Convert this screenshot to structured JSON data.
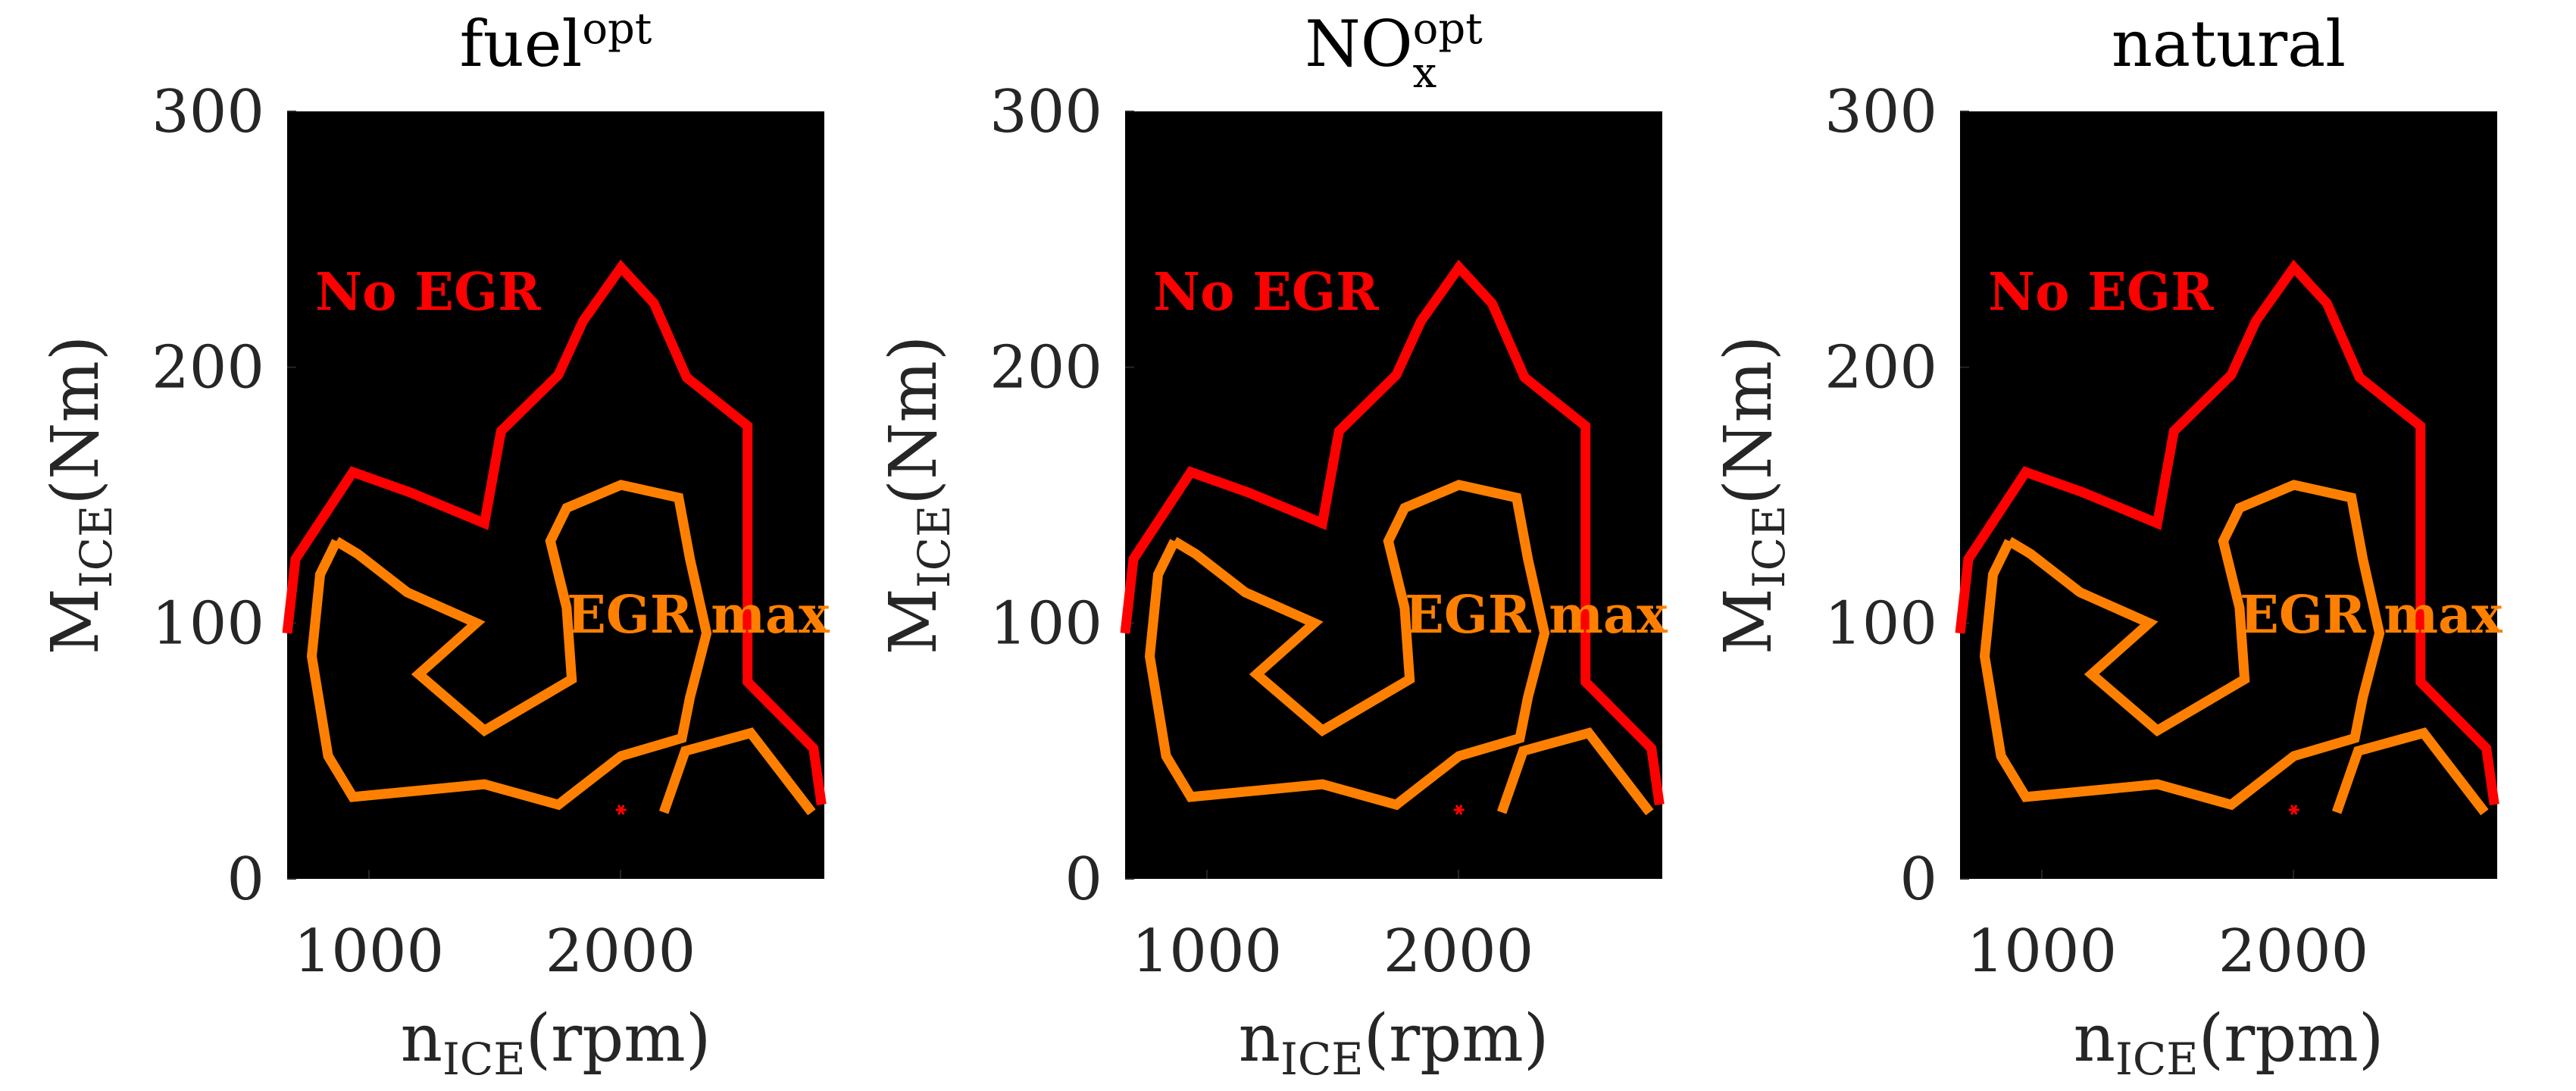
{
  "chart_data": [
    {
      "type": "contour",
      "title": "fuel",
      "title_sup": "opt",
      "xlabel": "n",
      "xlabel_sub": "ICE",
      "xlabel_unit": "(rpm)",
      "ylabel": "M",
      "ylabel_sub": "ICE",
      "ylabel_unit": "(Nm)",
      "xlim": [
        675,
        2810
      ],
      "ylim": [
        0,
        300
      ],
      "xticks": [
        1000,
        2000
      ],
      "yticks": [
        0,
        100,
        200,
        300
      ],
      "background": "#000000",
      "series": [
        {
          "name": "No EGR",
          "color": "#ff0000",
          "x": [
            675,
            708,
            936,
            1165,
            1459,
            1525,
            1753,
            1851,
            2002,
            2133,
            2263,
            2505,
            2505,
            2767,
            2799
          ],
          "values": [
            96,
            125,
            159,
            151,
            139,
            175,
            197,
            218,
            239,
            225,
            196,
            177,
            77,
            51,
            29
          ]
        },
        {
          "name": "EGR max",
          "color": "#ff8000",
          "x": [
            871,
            956,
            1152,
            1427,
            1198,
            1459,
            1806,
            1786,
            1721,
            1786,
            2002,
            2231,
            2276,
            2342,
            2276,
            2244,
            2002,
            1753,
            1459,
            936,
            838,
            773,
            806,
            871
          ],
          "values": [
            132,
            127,
            112,
            100,
            80,
            58,
            78,
            106,
            132,
            145,
            154,
            149,
            125,
            96,
            71,
            55,
            48,
            29,
            37,
            32,
            48,
            87,
            119,
            132
          ]
        },
        {
          "color": "#ff8000",
          "x": [
            2172,
            2257,
            2518,
            2760
          ],
          "values": [
            26,
            50,
            57,
            26
          ]
        }
      ],
      "points": {
        "color": "#ff0000",
        "x": [
          2002
        ],
        "values": [
          27
        ]
      }
    },
    {
      "type": "contour",
      "title": "NO",
      "title_sub": "x",
      "title_sup": "opt",
      "xlabel": "n",
      "xlabel_sub": "ICE",
      "xlabel_unit": "(rpm)",
      "ylabel": "M",
      "ylabel_sub": "ICE",
      "ylabel_unit": "(Nm)",
      "xlim": [
        675,
        2810
      ],
      "ylim": [
        0,
        300
      ],
      "xticks": [
        1000,
        2000
      ],
      "yticks": [
        0,
        100,
        200,
        300
      ],
      "background": "#000000",
      "series": [
        {
          "name": "No EGR",
          "color": "#ff0000",
          "x": [
            675,
            708,
            936,
            1165,
            1459,
            1525,
            1753,
            1851,
            2002,
            2133,
            2263,
            2505,
            2505,
            2767,
            2799
          ],
          "values": [
            96,
            125,
            159,
            151,
            139,
            175,
            197,
            218,
            239,
            225,
            196,
            177,
            77,
            51,
            29
          ]
        },
        {
          "name": "EGR max",
          "color": "#ff8000",
          "x": [
            871,
            956,
            1152,
            1427,
            1198,
            1459,
            1806,
            1786,
            1721,
            1786,
            2002,
            2231,
            2276,
            2342,
            2276,
            2244,
            2002,
            1753,
            1459,
            936,
            838,
            773,
            806,
            871
          ],
          "values": [
            132,
            127,
            112,
            100,
            80,
            58,
            78,
            106,
            132,
            145,
            154,
            149,
            125,
            96,
            71,
            55,
            48,
            29,
            37,
            32,
            48,
            87,
            119,
            132
          ]
        },
        {
          "color": "#ff8000",
          "x": [
            2172,
            2257,
            2518,
            2760
          ],
          "values": [
            26,
            50,
            57,
            26
          ]
        }
      ],
      "points": {
        "color": "#ff0000",
        "x": [
          2002
        ],
        "values": [
          27
        ]
      }
    },
    {
      "type": "contour",
      "title": "natural",
      "xlabel": "n",
      "xlabel_sub": "ICE",
      "xlabel_unit": "(rpm)",
      "ylabel": "M",
      "ylabel_sub": "ICE",
      "ylabel_unit": "(Nm)",
      "xlim": [
        675,
        2810
      ],
      "ylim": [
        0,
        300
      ],
      "xticks": [
        1000,
        2000
      ],
      "yticks": [
        0,
        100,
        200,
        300
      ],
      "background": "#000000",
      "series": [
        {
          "name": "No EGR",
          "color": "#ff0000",
          "x": [
            675,
            708,
            936,
            1165,
            1459,
            1525,
            1753,
            1851,
            2002,
            2133,
            2263,
            2505,
            2505,
            2767,
            2799
          ],
          "values": [
            96,
            125,
            159,
            151,
            139,
            175,
            197,
            218,
            239,
            225,
            196,
            177,
            77,
            51,
            29
          ]
        },
        {
          "name": "EGR max",
          "color": "#ff8000",
          "x": [
            871,
            956,
            1152,
            1427,
            1198,
            1459,
            1806,
            1786,
            1721,
            1786,
            2002,
            2231,
            2276,
            2342,
            2276,
            2244,
            2002,
            1753,
            1459,
            936,
            838,
            773,
            806,
            871
          ],
          "values": [
            132,
            127,
            112,
            100,
            80,
            58,
            78,
            106,
            132,
            145,
            154,
            149,
            125,
            96,
            71,
            55,
            48,
            29,
            37,
            32,
            48,
            87,
            119,
            132
          ]
        },
        {
          "color": "#ff8000",
          "x": [
            2172,
            2257,
            2518,
            2760
          ],
          "values": [
            26,
            50,
            57,
            26
          ]
        }
      ],
      "points": {
        "color": "#ff0000",
        "x": [
          2002
        ],
        "values": [
          27
        ]
      }
    }
  ]
}
